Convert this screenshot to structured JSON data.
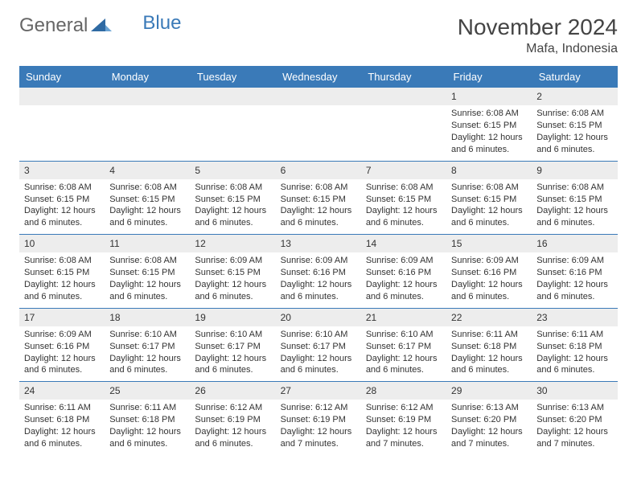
{
  "brand": {
    "part1": "General",
    "part2": "Blue",
    "mark_color": "#2f6aa3"
  },
  "header": {
    "month_title": "November 2024",
    "location": "Mafa, Indonesia"
  },
  "colors": {
    "header_bg": "#3a7ab8",
    "rule": "#3a7ab8",
    "daynum_bg": "#ededed",
    "text": "#333333"
  },
  "weekdays": [
    "Sunday",
    "Monday",
    "Tuesday",
    "Wednesday",
    "Thursday",
    "Friday",
    "Saturday"
  ],
  "weeks": [
    [
      null,
      null,
      null,
      null,
      null,
      {
        "n": "1",
        "sr": "Sunrise: 6:08 AM",
        "ss": "Sunset: 6:15 PM",
        "dl": "Daylight: 12 hours and 6 minutes."
      },
      {
        "n": "2",
        "sr": "Sunrise: 6:08 AM",
        "ss": "Sunset: 6:15 PM",
        "dl": "Daylight: 12 hours and 6 minutes."
      }
    ],
    [
      {
        "n": "3",
        "sr": "Sunrise: 6:08 AM",
        "ss": "Sunset: 6:15 PM",
        "dl": "Daylight: 12 hours and 6 minutes."
      },
      {
        "n": "4",
        "sr": "Sunrise: 6:08 AM",
        "ss": "Sunset: 6:15 PM",
        "dl": "Daylight: 12 hours and 6 minutes."
      },
      {
        "n": "5",
        "sr": "Sunrise: 6:08 AM",
        "ss": "Sunset: 6:15 PM",
        "dl": "Daylight: 12 hours and 6 minutes."
      },
      {
        "n": "6",
        "sr": "Sunrise: 6:08 AM",
        "ss": "Sunset: 6:15 PM",
        "dl": "Daylight: 12 hours and 6 minutes."
      },
      {
        "n": "7",
        "sr": "Sunrise: 6:08 AM",
        "ss": "Sunset: 6:15 PM",
        "dl": "Daylight: 12 hours and 6 minutes."
      },
      {
        "n": "8",
        "sr": "Sunrise: 6:08 AM",
        "ss": "Sunset: 6:15 PM",
        "dl": "Daylight: 12 hours and 6 minutes."
      },
      {
        "n": "9",
        "sr": "Sunrise: 6:08 AM",
        "ss": "Sunset: 6:15 PM",
        "dl": "Daylight: 12 hours and 6 minutes."
      }
    ],
    [
      {
        "n": "10",
        "sr": "Sunrise: 6:08 AM",
        "ss": "Sunset: 6:15 PM",
        "dl": "Daylight: 12 hours and 6 minutes."
      },
      {
        "n": "11",
        "sr": "Sunrise: 6:08 AM",
        "ss": "Sunset: 6:15 PM",
        "dl": "Daylight: 12 hours and 6 minutes."
      },
      {
        "n": "12",
        "sr": "Sunrise: 6:09 AM",
        "ss": "Sunset: 6:15 PM",
        "dl": "Daylight: 12 hours and 6 minutes."
      },
      {
        "n": "13",
        "sr": "Sunrise: 6:09 AM",
        "ss": "Sunset: 6:16 PM",
        "dl": "Daylight: 12 hours and 6 minutes."
      },
      {
        "n": "14",
        "sr": "Sunrise: 6:09 AM",
        "ss": "Sunset: 6:16 PM",
        "dl": "Daylight: 12 hours and 6 minutes."
      },
      {
        "n": "15",
        "sr": "Sunrise: 6:09 AM",
        "ss": "Sunset: 6:16 PM",
        "dl": "Daylight: 12 hours and 6 minutes."
      },
      {
        "n": "16",
        "sr": "Sunrise: 6:09 AM",
        "ss": "Sunset: 6:16 PM",
        "dl": "Daylight: 12 hours and 6 minutes."
      }
    ],
    [
      {
        "n": "17",
        "sr": "Sunrise: 6:09 AM",
        "ss": "Sunset: 6:16 PM",
        "dl": "Daylight: 12 hours and 6 minutes."
      },
      {
        "n": "18",
        "sr": "Sunrise: 6:10 AM",
        "ss": "Sunset: 6:17 PM",
        "dl": "Daylight: 12 hours and 6 minutes."
      },
      {
        "n": "19",
        "sr": "Sunrise: 6:10 AM",
        "ss": "Sunset: 6:17 PM",
        "dl": "Daylight: 12 hours and 6 minutes."
      },
      {
        "n": "20",
        "sr": "Sunrise: 6:10 AM",
        "ss": "Sunset: 6:17 PM",
        "dl": "Daylight: 12 hours and 6 minutes."
      },
      {
        "n": "21",
        "sr": "Sunrise: 6:10 AM",
        "ss": "Sunset: 6:17 PM",
        "dl": "Daylight: 12 hours and 6 minutes."
      },
      {
        "n": "22",
        "sr": "Sunrise: 6:11 AM",
        "ss": "Sunset: 6:18 PM",
        "dl": "Daylight: 12 hours and 6 minutes."
      },
      {
        "n": "23",
        "sr": "Sunrise: 6:11 AM",
        "ss": "Sunset: 6:18 PM",
        "dl": "Daylight: 12 hours and 6 minutes."
      }
    ],
    [
      {
        "n": "24",
        "sr": "Sunrise: 6:11 AM",
        "ss": "Sunset: 6:18 PM",
        "dl": "Daylight: 12 hours and 6 minutes."
      },
      {
        "n": "25",
        "sr": "Sunrise: 6:11 AM",
        "ss": "Sunset: 6:18 PM",
        "dl": "Daylight: 12 hours and 6 minutes."
      },
      {
        "n": "26",
        "sr": "Sunrise: 6:12 AM",
        "ss": "Sunset: 6:19 PM",
        "dl": "Daylight: 12 hours and 6 minutes."
      },
      {
        "n": "27",
        "sr": "Sunrise: 6:12 AM",
        "ss": "Sunset: 6:19 PM",
        "dl": "Daylight: 12 hours and 7 minutes."
      },
      {
        "n": "28",
        "sr": "Sunrise: 6:12 AM",
        "ss": "Sunset: 6:19 PM",
        "dl": "Daylight: 12 hours and 7 minutes."
      },
      {
        "n": "29",
        "sr": "Sunrise: 6:13 AM",
        "ss": "Sunset: 6:20 PM",
        "dl": "Daylight: 12 hours and 7 minutes."
      },
      {
        "n": "30",
        "sr": "Sunrise: 6:13 AM",
        "ss": "Sunset: 6:20 PM",
        "dl": "Daylight: 12 hours and 7 minutes."
      }
    ]
  ]
}
